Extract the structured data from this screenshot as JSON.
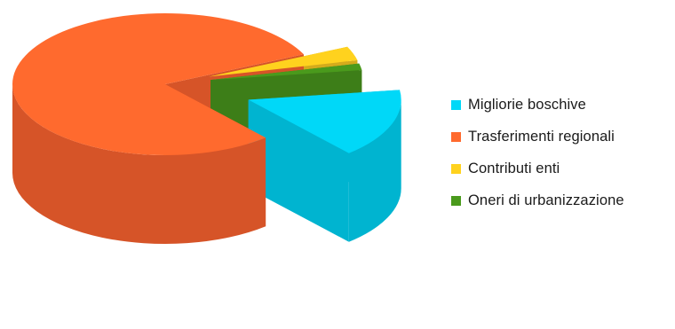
{
  "chart_data": {
    "type": "pie",
    "style": "3d-exploded",
    "legend_position": "right",
    "title": "",
    "slices": [
      {
        "label": "Migliorie boschive",
        "value": 15.8,
        "color": "#00d8f8",
        "side_color": "#00b4d0"
      },
      {
        "label": "Trasferimenti regionali",
        "value": 79.5,
        "color": "#ff6a2e",
        "side_color": "#d65428"
      },
      {
        "label": "Contributi enti",
        "value": 3.2,
        "color": "#ffd21e",
        "side_color": "#d4ab1c"
      },
      {
        "label": "Oneri di urbanizzazione",
        "value": 1.5,
        "color": "#4a9a1c",
        "side_color": "#3d7e18"
      }
    ]
  }
}
